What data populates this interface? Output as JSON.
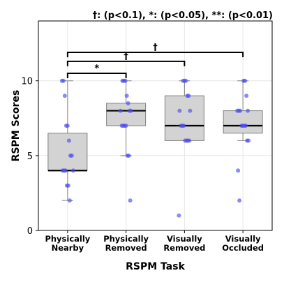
{
  "chart_data": {
    "type": "box",
    "legend_note": "†: (p<0.1), *: (p<0.05), **: (p<0.01)",
    "xlabel": "RSPM Task",
    "ylabel": "RSPM Scores",
    "ylim": [
      0,
      14
    ],
    "yticks": [
      0,
      5,
      10
    ],
    "grid": true,
    "colors": {
      "box_fill": "#d3d3d3",
      "median": "#000000",
      "point": "#4d4df0",
      "whisker": "#808080"
    },
    "categories": [
      {
        "label": [
          "Physically",
          "Nearby"
        ],
        "box": {
          "min": 2,
          "q1": 4,
          "median": 4,
          "q3": 6.5,
          "max": 10
        },
        "points": [
          10,
          10,
          9,
          7,
          7,
          6,
          5,
          5,
          4,
          4,
          4,
          4,
          3,
          3,
          2
        ]
      },
      {
        "label": [
          "Physically",
          "Removed"
        ],
        "box": {
          "min": 5,
          "q1": 7,
          "median": 8,
          "q3": 8.5,
          "max": 10
        },
        "points": [
          10,
          10,
          10,
          9,
          8.5,
          8,
          8,
          8,
          7,
          7,
          7,
          7,
          5,
          5,
          2
        ]
      },
      {
        "label": [
          "Visually",
          "Removed"
        ],
        "box": {
          "min": 6,
          "q1": 6,
          "median": 7,
          "q3": 9,
          "max": 10
        },
        "points": [
          10,
          10,
          10,
          9,
          9,
          8,
          8,
          7,
          7,
          7,
          6,
          6,
          6,
          6,
          1
        ]
      },
      {
        "label": [
          "Visually",
          "Occluded"
        ],
        "box": {
          "min": 6,
          "q1": 6.5,
          "median": 7,
          "q3": 8,
          "max": 10
        },
        "points": [
          10,
          10,
          9,
          8,
          8,
          8,
          8,
          7,
          7,
          7,
          7,
          6,
          6,
          4,
          2
        ]
      }
    ],
    "significance": [
      {
        "from": 0,
        "to": 1,
        "level": 10.5,
        "label": "*"
      },
      {
        "from": 0,
        "to": 2,
        "level": 11.3,
        "label": "†"
      },
      {
        "from": 0,
        "to": 3,
        "level": 11.9,
        "label": "†"
      }
    ]
  }
}
